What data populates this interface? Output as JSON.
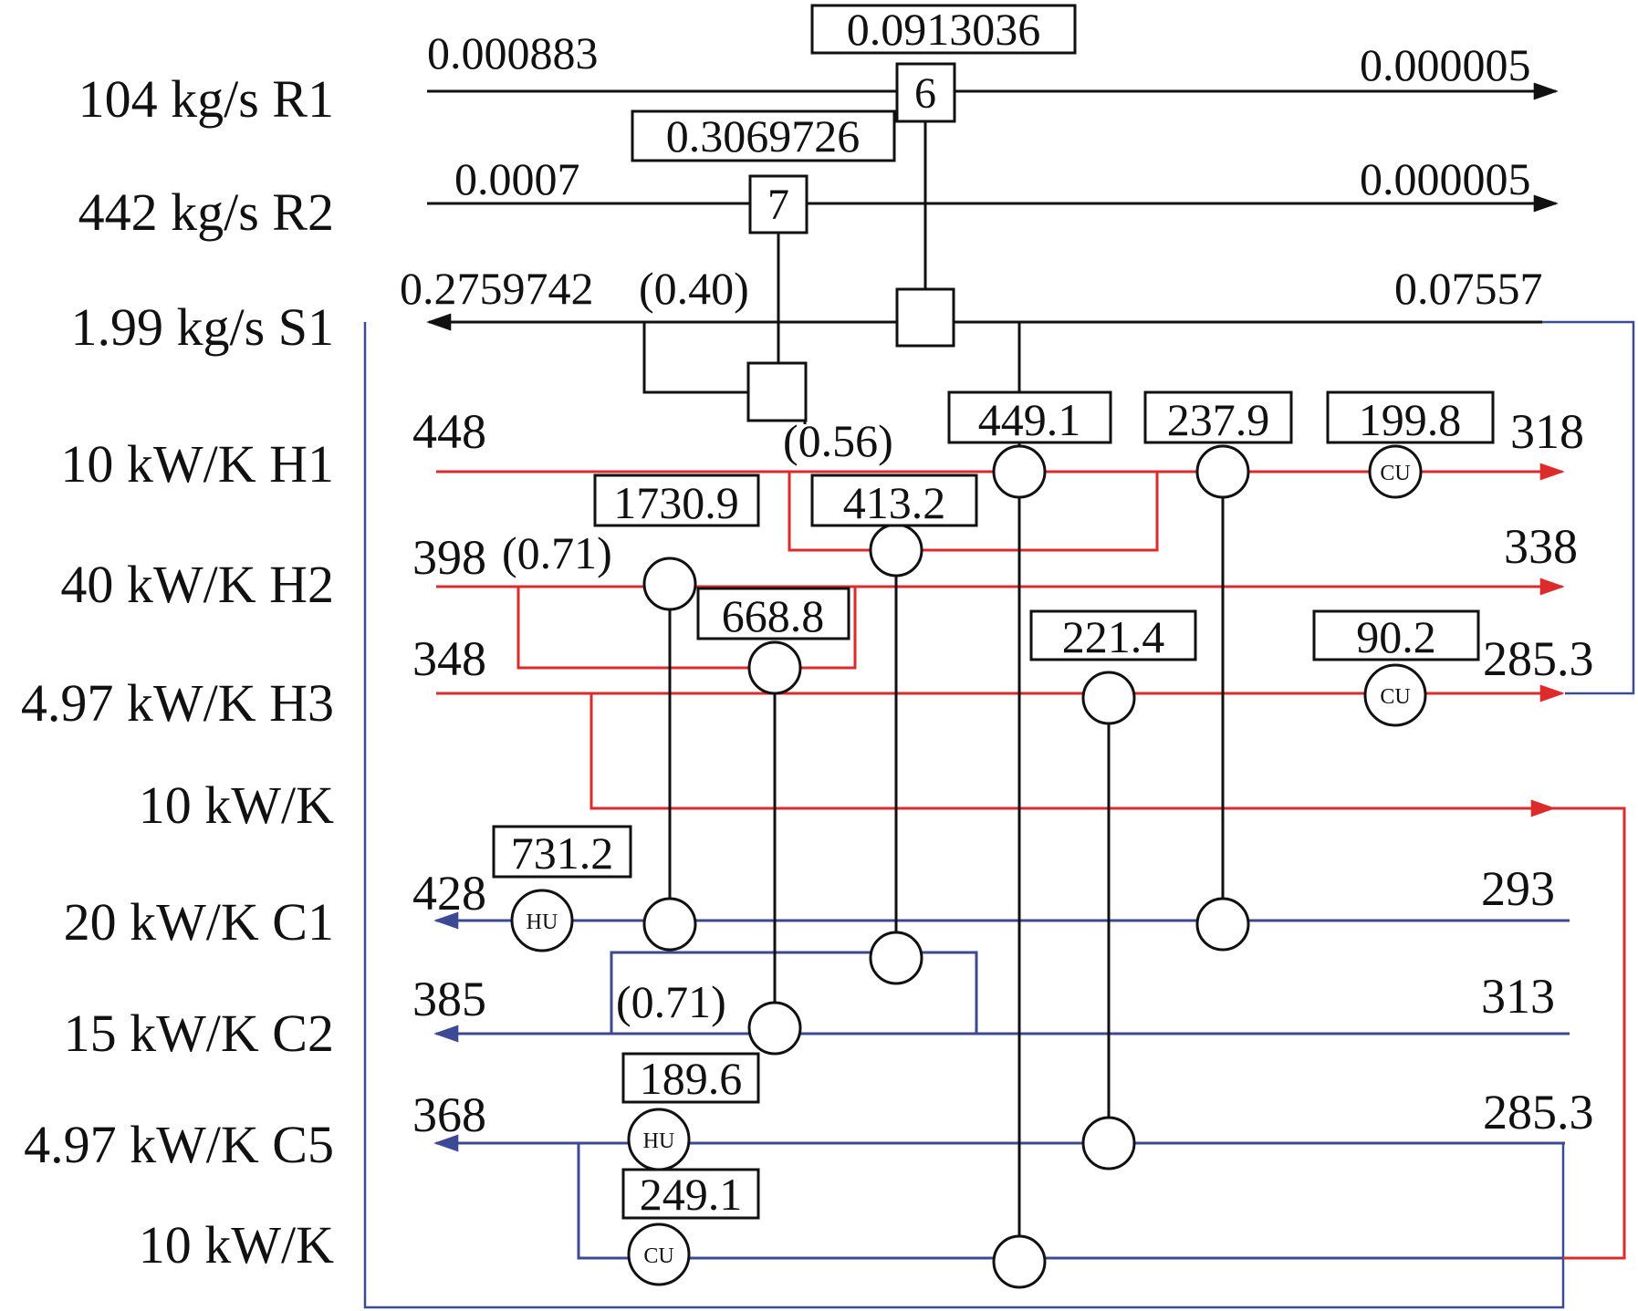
{
  "colors": {
    "black": "#111111",
    "red": "#dd2a2a",
    "blue": "#3c4a96"
  },
  "rows": {
    "r1": "104 kg/s R1",
    "r2": "442 kg/s R2",
    "s1": "1.99 kg/s S1",
    "h1": "10 kW/K H1",
    "h2": "40 kW/K H2",
    "h3": "4.97 kW/K H3",
    "h4": "10 kW/K",
    "c1": "20 kW/K C1",
    "c2": "15 kW/K C2",
    "c5": "4.97 kW/K C5",
    "c6": "10 kW/K"
  },
  "concentrations": {
    "r1_in": "0.000883",
    "r1_out": "0.000005",
    "r2_in": "0.0007",
    "r2_out": "0.000005",
    "s1_out": "0.2759742",
    "s1_in": "0.07557"
  },
  "mass_exchangers": {
    "e6": {
      "id": "6",
      "load": "0.0913036"
    },
    "e7": {
      "id": "7",
      "load": "0.3069726"
    }
  },
  "split_fractions": {
    "s1_split": "(0.40)",
    "h1_split": "(0.56)",
    "h2_split": "(0.71)",
    "c2_split": "(0.71)"
  },
  "temperatures": {
    "h1_in": "448",
    "h1_out": "318",
    "h2_in": "398",
    "h2_out": "338",
    "h3_in": "348",
    "h3_out": "285.3",
    "c1_out": "428",
    "c1_in": "293",
    "c2_out": "385",
    "c2_in": "313",
    "c5_out": "368",
    "c5_in": "285.3"
  },
  "heat_loads": {
    "hx_449": "449.1",
    "hx_237": "237.9",
    "cu_199": "199.8",
    "hx_1730": "1730.9",
    "hx_413": "413.2",
    "hx_668": "668.8",
    "hx_221": "221.4",
    "cu_90": "90.2",
    "hu_731": "731.2",
    "hu_189": "189.6",
    "cu_249": "249.1"
  },
  "unit_labels": {
    "hu": "HU",
    "cu": "CU"
  }
}
